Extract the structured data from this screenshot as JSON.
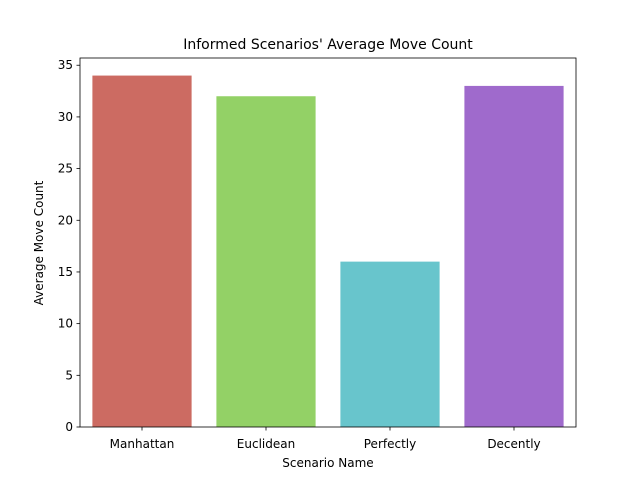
{
  "chart_data": {
    "type": "bar",
    "title": "Informed Scenarios' Average Move Count",
    "xlabel": "Scenario Name",
    "ylabel": "Average Move Count",
    "categories": [
      "Manhattan",
      "Euclidean",
      "Perfectly",
      "Decently"
    ],
    "values": [
      34,
      32,
      16,
      33
    ],
    "colors": [
      "#cc6b62",
      "#93d166",
      "#68c5cc",
      "#9f6acc"
    ],
    "ylim": [
      0,
      35.7
    ],
    "yticks": [
      0,
      5,
      10,
      15,
      20,
      25,
      30,
      35
    ],
    "grid": false,
    "legend": "none"
  }
}
